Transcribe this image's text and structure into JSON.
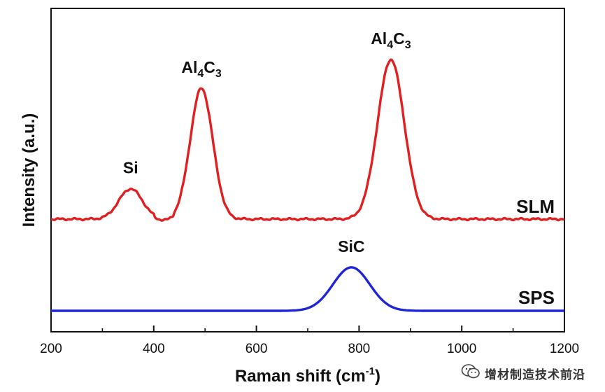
{
  "chart_data": {
    "type": "line",
    "title": "",
    "xlabel": "Raman shift (cm",
    "xlabel_superscript": "-1",
    "xlabel_suffix": ")",
    "ylabel": "Intensity (a.u.)",
    "xlim": [
      200,
      1200
    ],
    "x_major_ticks": [
      200,
      400,
      600,
      800,
      1000,
      1200
    ],
    "x_minor_ticks": [
      300,
      500,
      700,
      900,
      1100
    ],
    "y_ticks_shown": false,
    "grid": false,
    "series": [
      {
        "name": "SLM",
        "color": "#e02020",
        "baseline": 0.0,
        "peaks": [
          {
            "center": 355,
            "width": 23,
            "height": 0.19,
            "label": "Si"
          },
          {
            "center": 493,
            "width": 22,
            "height": 0.82,
            "label": "Al",
            "sub1": "4",
            "mid": "C",
            "sub2": "3"
          },
          {
            "center": 862,
            "width": 26,
            "height": 1.0,
            "label": "Al",
            "sub1": "4",
            "mid": "C",
            "sub2": "3"
          }
        ]
      },
      {
        "name": "SPS",
        "color": "#1f24d6",
        "baseline": 0.0,
        "peaks": [
          {
            "center": 785,
            "width": 36,
            "height": 0.27,
            "label": "SiC"
          }
        ]
      }
    ]
  },
  "watermark": {
    "text": "增材制造技术前沿",
    "icon": "wechat-icon"
  }
}
